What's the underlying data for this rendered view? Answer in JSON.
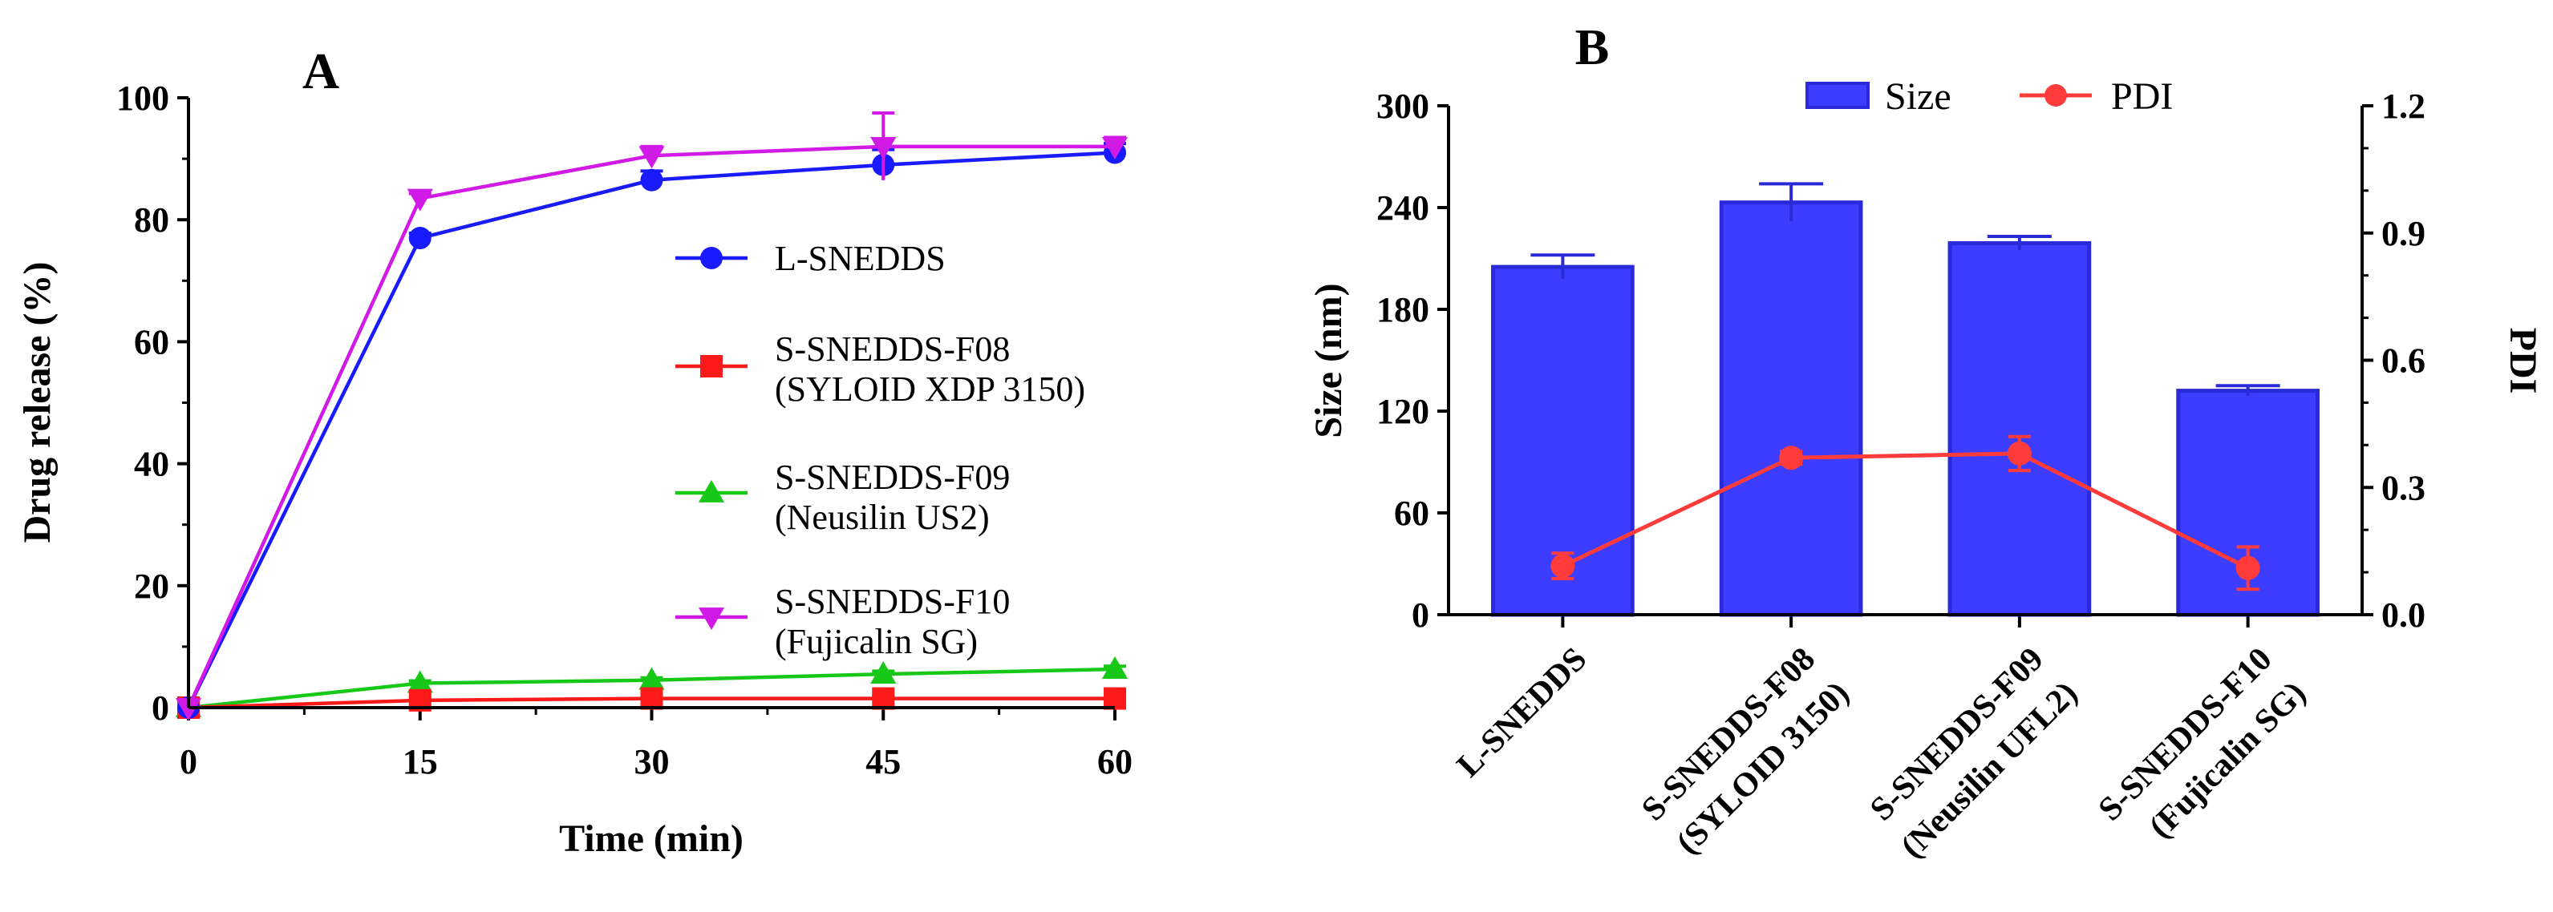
{
  "colors": {
    "l_snedds": "#1a1aff",
    "f08": "#ff1a1a",
    "f09": "#18c818",
    "f10": "#d21ae6",
    "bar_fill": "#3d3dff",
    "bar_edge": "#2a2ad8",
    "pdi_line": "#ff3b3b"
  },
  "chart_data": [
    {
      "panel": "A",
      "type": "line",
      "xlabel": "Time (min)",
      "ylabel": "Drug release (%)",
      "xlim": [
        0,
        60
      ],
      "ylim": [
        0,
        100
      ],
      "xticks": [
        "0",
        "15",
        "30",
        "45",
        "60"
      ],
      "yticks": [
        "0",
        "20",
        "40",
        "60",
        "80",
        "100"
      ],
      "x": [
        0,
        15,
        30,
        45,
        60
      ],
      "series": [
        {
          "name": "L-SNEDDS",
          "label_lines": [
            "L-SNEDDS"
          ],
          "marker": "circle",
          "color_key": "l_snedds",
          "values": [
            0,
            77,
            86.5,
            89,
            91
          ],
          "errors": [
            0,
            0.8,
            1.5,
            2.5,
            1.5
          ]
        },
        {
          "name": "S-SNEDDS-F08 (SYLOID XDP 3150)",
          "label_lines": [
            "S-SNEDDS-F08",
            "(SYLOID XDP 3150)"
          ],
          "marker": "square",
          "color_key": "f08",
          "values": [
            0,
            1.2,
            1.5,
            1.5,
            1.5
          ],
          "errors": [
            0,
            0.3,
            0.3,
            0.3,
            0.3
          ]
        },
        {
          "name": "S-SNEDDS-F09 (Neusilin US2)",
          "label_lines": [
            "S-SNEDDS-F09",
            "(Neusilin US2)"
          ],
          "marker": "triangle",
          "color_key": "f09",
          "values": [
            0,
            4,
            4.5,
            5.5,
            6.3
          ],
          "errors": [
            0,
            0.4,
            0.4,
            0.5,
            0.5
          ]
        },
        {
          "name": "S-SNEDDS-F10 (Fujicalin SG)",
          "label_lines": [
            "S-SNEDDS-F10",
            "(Fujicalin SG)"
          ],
          "marker": "triangle-down",
          "color_key": "f10",
          "values": [
            0,
            83.5,
            90.5,
            92,
            92
          ],
          "errors": [
            0,
            0.8,
            1.5,
            5.5,
            1.5
          ]
        }
      ]
    },
    {
      "panel": "B",
      "type": "bar",
      "categories": [
        "L-SNEDDS",
        "S-SNEDDS-F08 (SYLOID 3150)",
        "S-SNEDDS-F09 (Neusilin UFL2)",
        "S-SNEDDS-F10 (Fujicalin SG)"
      ],
      "category_lines": [
        [
          "L-SNEDDS"
        ],
        [
          "S-SNEDDS-F08",
          "(SYLOID 3150)"
        ],
        [
          "S-SNEDDS-F09",
          "(Neusilin UFL2)"
        ],
        [
          "S-SNEDDS-F10",
          "(Fujicalin SG)"
        ]
      ],
      "ylabel": "Size (nm)",
      "y2label": "PDI",
      "ylim": [
        0,
        300
      ],
      "y2lim": [
        0,
        1.2
      ],
      "yticks": [
        "0",
        "60",
        "120",
        "180",
        "240",
        "300"
      ],
      "y2ticks": [
        "0.0",
        "0.3",
        "0.6",
        "0.9",
        "1.2"
      ],
      "legend": [
        "Size",
        "PDI"
      ],
      "series": [
        {
          "name": "Size",
          "kind": "bar",
          "values": [
            205,
            243,
            219,
            132
          ],
          "errors": [
            7,
            11,
            4,
            3
          ]
        },
        {
          "name": "PDI",
          "kind": "line",
          "axis": "right",
          "values": [
            0.115,
            0.37,
            0.38,
            0.11
          ],
          "errors": [
            0.03,
            0.015,
            0.04,
            0.05
          ]
        }
      ]
    }
  ]
}
